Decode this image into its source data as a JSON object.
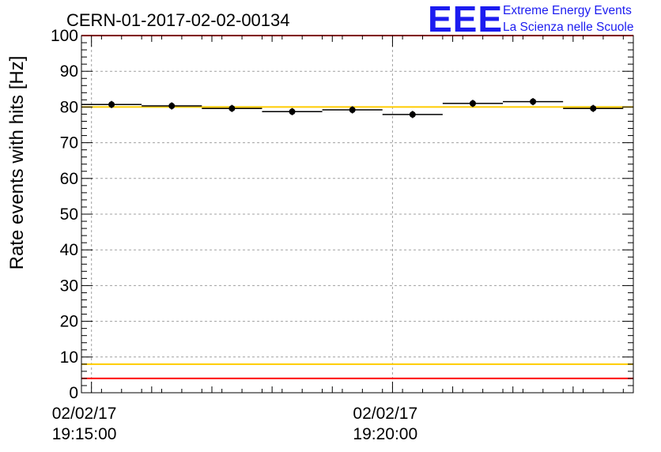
{
  "chart_data": {
    "type": "scatter",
    "title": "CERN-01-2017-02-02-00134",
    "ylabel": "Rate events with hits [Hz]",
    "xlabel": "",
    "x_unit": "minutes",
    "xlim": [
      "19:14:50",
      "19:24:00"
    ],
    "ylim": [
      0,
      100
    ],
    "y_ticks": [
      0,
      10,
      20,
      30,
      40,
      50,
      60,
      70,
      80,
      90,
      100
    ],
    "x_ticks": [
      {
        "t": 0.1667,
        "date": "02/02/17",
        "time": "19:15:00"
      },
      {
        "t": 5.1667,
        "date": "02/02/17",
        "time": "19:20:00"
      }
    ],
    "grid": true,
    "series": [
      {
        "marker": "circle-with-error-bars",
        "color": "#000000",
        "points": [
          {
            "time": "19:15:20",
            "x": 0.5,
            "y": 80.7,
            "xerr": 0.5,
            "yerr": 1.0
          },
          {
            "time": "19:16:20",
            "x": 1.5,
            "y": 80.3,
            "xerr": 0.5,
            "yerr": 1.0
          },
          {
            "time": "19:17:20",
            "x": 2.5,
            "y": 79.6,
            "xerr": 0.5,
            "yerr": 1.0
          },
          {
            "time": "19:18:20",
            "x": 3.5,
            "y": 78.7,
            "xerr": 0.5,
            "yerr": 1.0
          },
          {
            "time": "19:19:20",
            "x": 4.5,
            "y": 79.2,
            "xerr": 0.5,
            "yerr": 1.0
          },
          {
            "time": "19:20:20",
            "x": 5.5,
            "y": 77.9,
            "xerr": 0.5,
            "yerr": 1.0
          },
          {
            "time": "19:21:20",
            "x": 6.5,
            "y": 81.0,
            "xerr": 0.5,
            "yerr": 1.0
          },
          {
            "time": "19:22:20",
            "x": 7.5,
            "y": 81.5,
            "xerr": 0.5,
            "yerr": 1.0
          },
          {
            "time": "19:23:20",
            "x": 8.5,
            "y": 79.6,
            "xerr": 0.5,
            "yerr": 1.0
          }
        ]
      }
    ],
    "reference_lines": [
      {
        "y": 100,
        "color": "#ff0000"
      },
      {
        "y": 80,
        "color": "#ffcc00"
      },
      {
        "y": 8,
        "color": "#ffcc00"
      },
      {
        "y": 4,
        "color": "#ff0000"
      }
    ]
  },
  "logo": {
    "mark": "EEE",
    "line1": "Extreme Energy Events",
    "line2": "La Scienza nelle Scuole",
    "color": "#1c1cf0"
  }
}
